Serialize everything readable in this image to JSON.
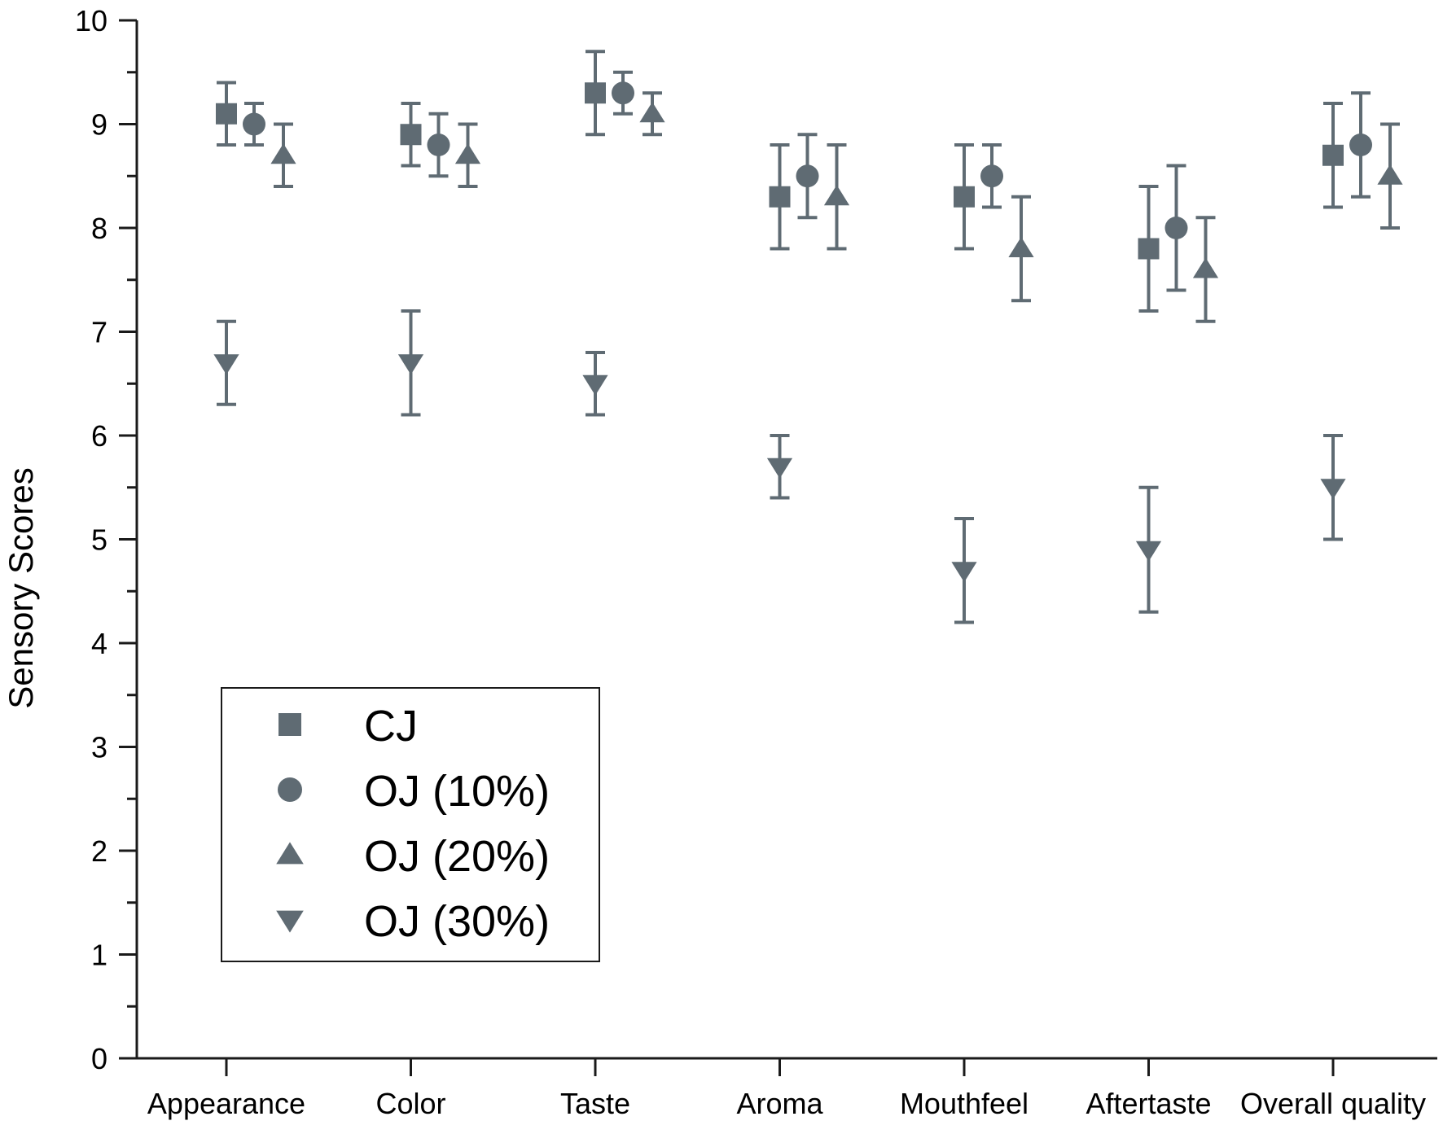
{
  "chart_data": {
    "type": "scatter",
    "title": "",
    "xlabel": "",
    "ylabel": "Sensory Scores",
    "ylim": [
      0,
      10
    ],
    "yticks": [
      "0",
      "1",
      "2",
      "3",
      "4",
      "5",
      "6",
      "7",
      "8",
      "9",
      "10"
    ],
    "grid": false,
    "legend_position": "bottom-left",
    "marker_color": "#5f6b73",
    "categories": [
      "Appearance",
      "Color",
      "Taste",
      "Aroma",
      "Mouthfeel",
      "Aftertaste",
      "Overall quality"
    ],
    "series": [
      {
        "name": "CJ",
        "marker": "square",
        "values": [
          9.1,
          8.9,
          9.3,
          8.3,
          8.3,
          7.8,
          8.7
        ],
        "errors": [
          0.3,
          0.3,
          0.4,
          0.5,
          0.5,
          0.6,
          0.5
        ]
      },
      {
        "name": "OJ (10%)",
        "marker": "circle",
        "values": [
          9.0,
          8.8,
          9.3,
          8.5,
          8.5,
          8.0,
          8.8
        ],
        "errors": [
          0.2,
          0.3,
          0.2,
          0.4,
          0.3,
          0.6,
          0.5
        ]
      },
      {
        "name": "OJ (20%)",
        "marker": "triangle-up",
        "values": [
          8.7,
          8.7,
          9.1,
          8.3,
          7.8,
          7.6,
          8.5
        ],
        "errors": [
          0.3,
          0.3,
          0.2,
          0.5,
          0.5,
          0.5,
          0.5
        ]
      },
      {
        "name": "OJ (30%)",
        "marker": "triangle-down",
        "values": [
          6.7,
          6.7,
          6.5,
          5.7,
          4.7,
          4.9,
          5.5
        ],
        "errors": [
          0.4,
          0.5,
          0.3,
          0.3,
          0.5,
          0.6,
          0.5
        ]
      }
    ]
  }
}
